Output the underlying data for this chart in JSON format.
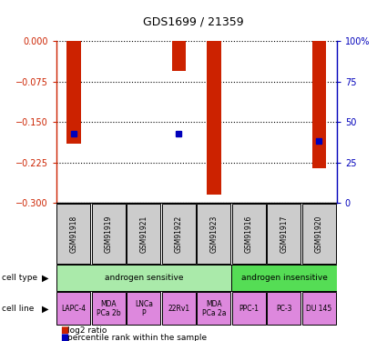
{
  "title": "GDS1699 / 21359",
  "samples": [
    "GSM91918",
    "GSM91919",
    "GSM91921",
    "GSM91922",
    "GSM91923",
    "GSM91916",
    "GSM91917",
    "GSM91920"
  ],
  "log2_ratio": [
    -0.19,
    0.0,
    0.0,
    -0.055,
    -0.285,
    0.0,
    0.0,
    -0.235
  ],
  "percentile_rank": [
    43,
    0,
    0,
    43,
    0,
    0,
    0,
    38
  ],
  "cell_type_groups": [
    {
      "label": "androgen sensitive",
      "start": 0,
      "end": 5,
      "color": "#AAEAAA"
    },
    {
      "label": "androgen insensitive",
      "start": 5,
      "end": 8,
      "color": "#55DD55"
    }
  ],
  "cell_lines": [
    "LAPC-4",
    "MDA\nPCa 2b",
    "LNCa\nP",
    "22Rv1",
    "MDA\nPCa 2a",
    "PPC-1",
    "PC-3",
    "DU 145"
  ],
  "cell_line_color": "#DD88DD",
  "sample_box_color": "#CCCCCC",
  "bar_color": "#CC2200",
  "dot_color": "#0000BB",
  "ylim_left": [
    -0.3,
    0
  ],
  "ylim_right": [
    0,
    100
  ],
  "yticks_left": [
    -0.3,
    -0.225,
    -0.15,
    -0.075,
    0
  ],
  "yticks_right": [
    0,
    25,
    50,
    75,
    100
  ],
  "left_axis_color": "#CC2200",
  "right_axis_color": "#0000BB",
  "legend_items": [
    "log2 ratio",
    "percentile rank within the sample"
  ],
  "legend_colors": [
    "#CC2200",
    "#0000BB"
  ]
}
